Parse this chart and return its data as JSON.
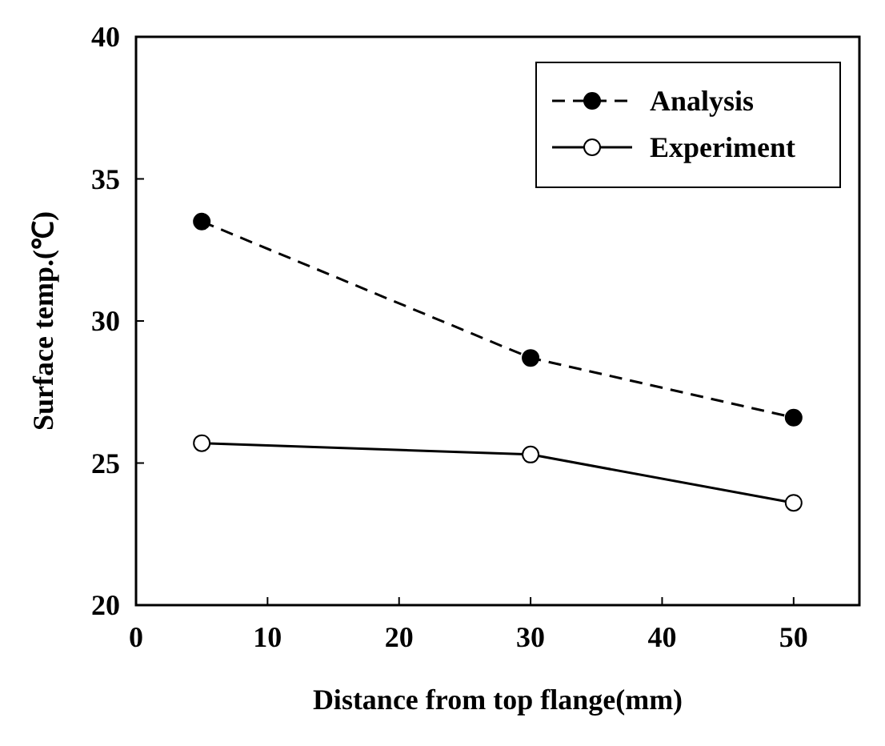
{
  "chart_data": {
    "type": "line",
    "xlabel": "Distance from top flange(mm)",
    "ylabel": "Surface temp.(℃)",
    "x": [
      5,
      30,
      50
    ],
    "series": [
      {
        "name": "Analysis",
        "color": "#000000",
        "values": [
          33.5,
          28.7,
          26.6
        ],
        "line_style": "dashed",
        "marker": "circle"
      },
      {
        "name": "Experiment",
        "color": "#000000",
        "values": [
          25.7,
          25.3,
          23.6
        ],
        "line_style": "solid",
        "marker": "circle"
      }
    ],
    "xlim": [
      0,
      55
    ],
    "xticks": [
      0,
      10,
      20,
      30,
      40,
      50
    ],
    "ylim": [
      20,
      40
    ],
    "yticks": [
      20,
      25,
      30,
      35,
      40
    ],
    "grid": false,
    "legend": "top right"
  }
}
